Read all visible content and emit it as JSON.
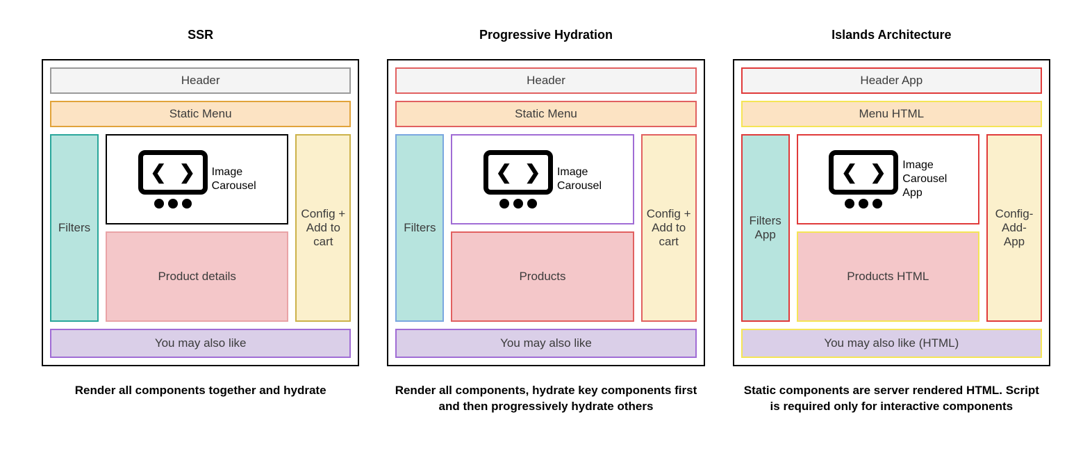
{
  "colors": {
    "header_bg": "#f4f4f4",
    "menu_bg": "#fce3c3",
    "filters_bg": "#b7e4de",
    "config_bg": "#fbf0cc",
    "carousel_bg": "#ffffff",
    "products_bg": "#f4c7c9",
    "footer_bg": "#dacfe8",
    "border_gray": "#9a9a9a",
    "border_orange": "#e1a33a",
    "border_teal": "#2aa79b",
    "border_black": "#000000",
    "border_yellow": "#ccb24a",
    "border_red": "#e16060",
    "border_pink": "#e9a3a6",
    "border_purple": "#a06cd5",
    "border_blue": "#7aa7e0",
    "border_yellow_bright": "#f5e556",
    "border_red_bright": "#e03a3a"
  },
  "panels": [
    {
      "id": "ssr",
      "title": "SSR",
      "caption": "Render all components together and hydrate",
      "boxes": {
        "header": {
          "label": "Header",
          "bg": "header_bg",
          "border": "border_gray"
        },
        "menu": {
          "label": "Static Menu",
          "bg": "menu_bg",
          "border": "border_orange"
        },
        "filters": {
          "label": "Filters",
          "bg": "filters_bg",
          "border": "border_teal"
        },
        "carousel": {
          "label": "Image\nCarousel",
          "bg": "carousel_bg",
          "border": "border_black"
        },
        "products": {
          "label": "Product details",
          "bg": "products_bg",
          "border": "border_pink"
        },
        "config": {
          "label": "Config + Add to cart",
          "bg": "config_bg",
          "border": "border_yellow"
        },
        "footer": {
          "label": "You may also like",
          "bg": "footer_bg",
          "border": "border_purple"
        }
      }
    },
    {
      "id": "progressive",
      "title": "Progressive Hydration",
      "caption": "Render all components, hydrate key components first and then progressively hydrate others",
      "boxes": {
        "header": {
          "label": "Header",
          "bg": "header_bg",
          "border": "border_red"
        },
        "menu": {
          "label": "Static Menu",
          "bg": "menu_bg",
          "border": "border_red"
        },
        "filters": {
          "label": "Filters",
          "bg": "filters_bg",
          "border": "border_blue"
        },
        "carousel": {
          "label": "Image\nCarousel",
          "bg": "carousel_bg",
          "border": "border_purple"
        },
        "products": {
          "label": "Products",
          "bg": "products_bg",
          "border": "border_red"
        },
        "config": {
          "label": "Config + Add to cart",
          "bg": "config_bg",
          "border": "border_red"
        },
        "footer": {
          "label": "You may also like",
          "bg": "footer_bg",
          "border": "border_purple"
        }
      }
    },
    {
      "id": "islands",
      "title": "Islands Architecture",
      "caption": "Static components are server rendered HTML. Script is required only for interactive components",
      "boxes": {
        "header": {
          "label": "Header App",
          "bg": "header_bg",
          "border": "border_red_bright"
        },
        "menu": {
          "label": "Menu HTML",
          "bg": "menu_bg",
          "border": "border_yellow_bright"
        },
        "filters": {
          "label": "Filters\nApp",
          "bg": "filters_bg",
          "border": "border_red_bright"
        },
        "carousel": {
          "label": "Image\nCarousel\nApp",
          "bg": "carousel_bg",
          "border": "border_red_bright"
        },
        "products": {
          "label": "Products HTML",
          "bg": "products_bg",
          "border": "border_yellow_bright"
        },
        "config": {
          "label": "Config-Add-App",
          "bg": "config_bg",
          "border": "border_red_bright"
        },
        "footer": {
          "label": "You may also like (HTML)",
          "bg": "footer_bg",
          "border": "border_yellow_bright"
        }
      }
    }
  ]
}
